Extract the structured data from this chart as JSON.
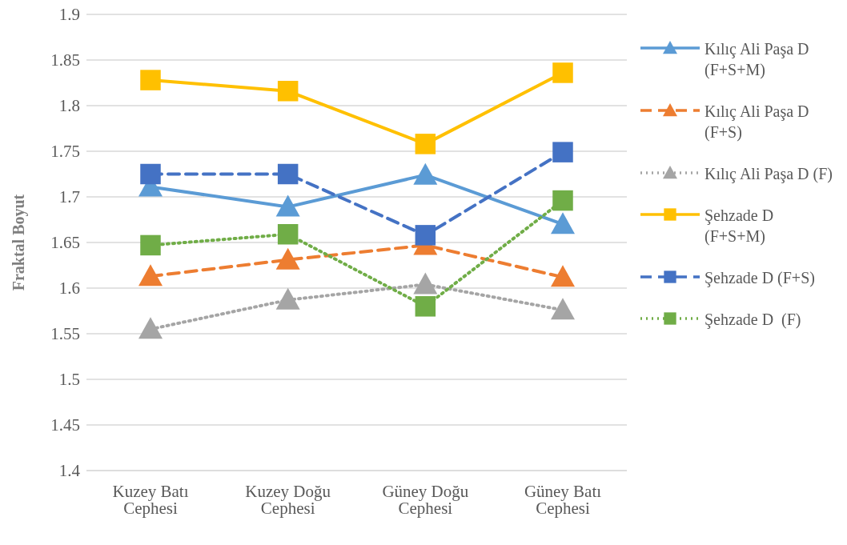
{
  "chart_data": {
    "type": "line",
    "ylabel": "Fraktal Boyut",
    "categories": [
      "Kuzey Batı Cephesi",
      "Kuzey Doğu Cephesi",
      "Güney Doğu Cephesi",
      "Güney Batı Cephesi"
    ],
    "ylim": [
      1.4,
      1.9
    ],
    "yticks": [
      1.4,
      1.45,
      1.5,
      1.55,
      1.6,
      1.65,
      1.7,
      1.75,
      1.8,
      1.85,
      1.9
    ],
    "grid": "y",
    "legend": "right",
    "series": [
      {
        "name": "Kılıç Ali Paşa D (F+S+M)",
        "color": "#5b9bd5",
        "marker": "triangle",
        "line_style": "solid",
        "values": [
          1.711,
          1.689,
          1.724,
          1.67
        ]
      },
      {
        "name": "Kılıç Ali Paşa D (F+S)",
        "color": "#ed7d31",
        "marker": "triangle",
        "line_style": "dashed",
        "values": [
          1.613,
          1.631,
          1.647,
          1.612
        ]
      },
      {
        "name": "Kılıç Ali Paşa D (F)",
        "color": "#a5a5a5",
        "marker": "triangle",
        "line_style": "dotted",
        "values": [
          1.555,
          1.587,
          1.604,
          1.576
        ]
      },
      {
        "name": "Şehzade D (F+S+M)",
        "color": "#ffc000",
        "marker": "square",
        "line_style": "solid",
        "values": [
          1.828,
          1.816,
          1.758,
          1.836
        ]
      },
      {
        "name": "Şehzade D (F+S)",
        "color": "#4472c4",
        "marker": "square",
        "line_style": "dashed",
        "values": [
          1.725,
          1.725,
          1.658,
          1.749
        ]
      },
      {
        "name": "Şehzade D  (F)",
        "color": "#70ad47",
        "marker": "square",
        "line_style": "dotted",
        "values": [
          1.647,
          1.659,
          1.58,
          1.696
        ]
      }
    ]
  }
}
